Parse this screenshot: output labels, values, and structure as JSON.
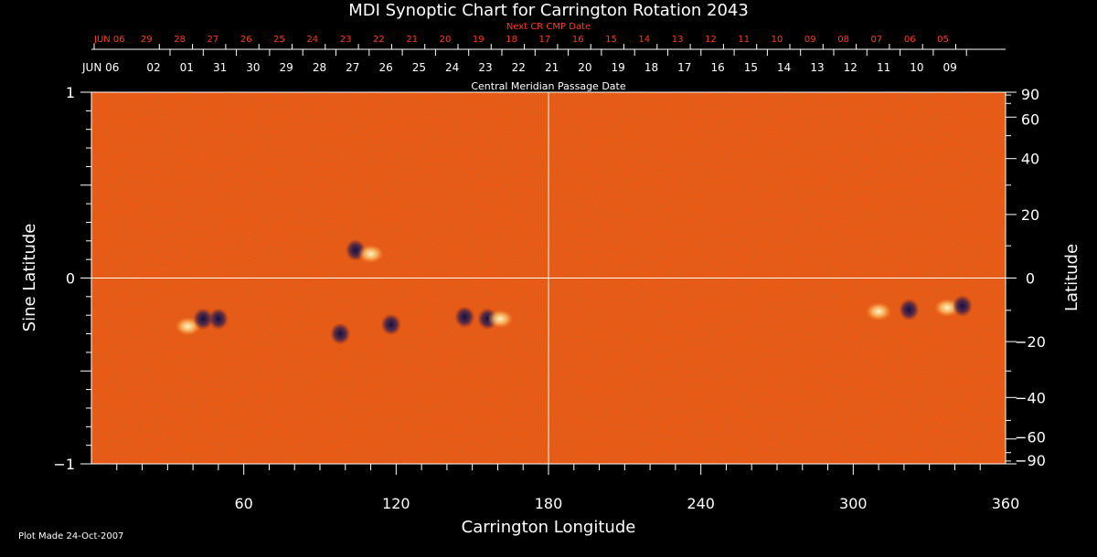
{
  "chart_data": {
    "type": "heatmap",
    "title": "MDI Synoptic Chart for Carrington Rotation 2043",
    "xlabel": "Carrington Longitude",
    "ylabel_left": "Sine Latitude",
    "ylabel_right": "Latitude",
    "xlim": [
      0,
      360
    ],
    "ylim": [
      -1,
      1
    ],
    "x_ticks": [
      60,
      120,
      180,
      240,
      300,
      360
    ],
    "y_ticks_left": [
      {
        "value": 1,
        "label": "1"
      },
      {
        "value": 0,
        "label": "0"
      },
      {
        "value": -1,
        "label": "−1"
      }
    ],
    "y_ticks_right_latitude": [
      90,
      60,
      40,
      20,
      0,
      -20,
      -40,
      -60,
      -90
    ],
    "y_ticks_right_labels": [
      "90",
      "60",
      "40",
      "20",
      "0",
      "−20",
      "−40",
      "−60",
      "−90"
    ],
    "top_axis_next_cr_label": "Next CR CMP Date",
    "top_axis_next_cr_ticks": [
      "JUN 06",
      "29",
      "28",
      "27",
      "26",
      "25",
      "24",
      "23",
      "22",
      "21",
      "20",
      "19",
      "18",
      "17",
      "16",
      "15",
      "14",
      "13",
      "12",
      "11",
      "10",
      "09",
      "08",
      "07",
      "06",
      "05"
    ],
    "top_axis_cmp_label": "Central Meridian Passage Date",
    "top_axis_cmp_ticks": [
      "JUN 06",
      "02",
      "01",
      "31",
      "30",
      "29",
      "28",
      "27",
      "26",
      "25",
      "24",
      "23",
      "22",
      "21",
      "20",
      "19",
      "18",
      "17",
      "16",
      "15",
      "14",
      "13",
      "12",
      "11",
      "10",
      "09"
    ],
    "reference_lines": {
      "vertical_longitude": 180,
      "horizontal_sine_latitude": 0
    },
    "colors": {
      "field_background": "#f05a12",
      "positive_polarity": "#fff4c0",
      "negative_polarity": "#1a1548",
      "axis": "#ffffff",
      "top_axis_red": "#ff3b1e"
    },
    "active_regions": [
      {
        "lon": 38,
        "sinlat": -0.26,
        "polarity": "positive"
      },
      {
        "lon": 44,
        "sinlat": -0.22,
        "polarity": "negative"
      },
      {
        "lon": 50,
        "sinlat": -0.22,
        "polarity": "negative"
      },
      {
        "lon": 104,
        "sinlat": 0.15,
        "polarity": "negative"
      },
      {
        "lon": 110,
        "sinlat": 0.13,
        "polarity": "positive"
      },
      {
        "lon": 98,
        "sinlat": -0.3,
        "polarity": "negative"
      },
      {
        "lon": 118,
        "sinlat": -0.25,
        "polarity": "negative"
      },
      {
        "lon": 147,
        "sinlat": -0.21,
        "polarity": "negative"
      },
      {
        "lon": 156,
        "sinlat": -0.22,
        "polarity": "negative"
      },
      {
        "lon": 161,
        "sinlat": -0.22,
        "polarity": "positive"
      },
      {
        "lon": 310,
        "sinlat": -0.18,
        "polarity": "positive"
      },
      {
        "lon": 322,
        "sinlat": -0.17,
        "polarity": "negative"
      },
      {
        "lon": 337,
        "sinlat": -0.16,
        "polarity": "positive"
      },
      {
        "lon": 343,
        "sinlat": -0.15,
        "polarity": "negative"
      }
    ]
  },
  "footer": {
    "plot_made": "Plot Made 24-Oct-2007"
  }
}
